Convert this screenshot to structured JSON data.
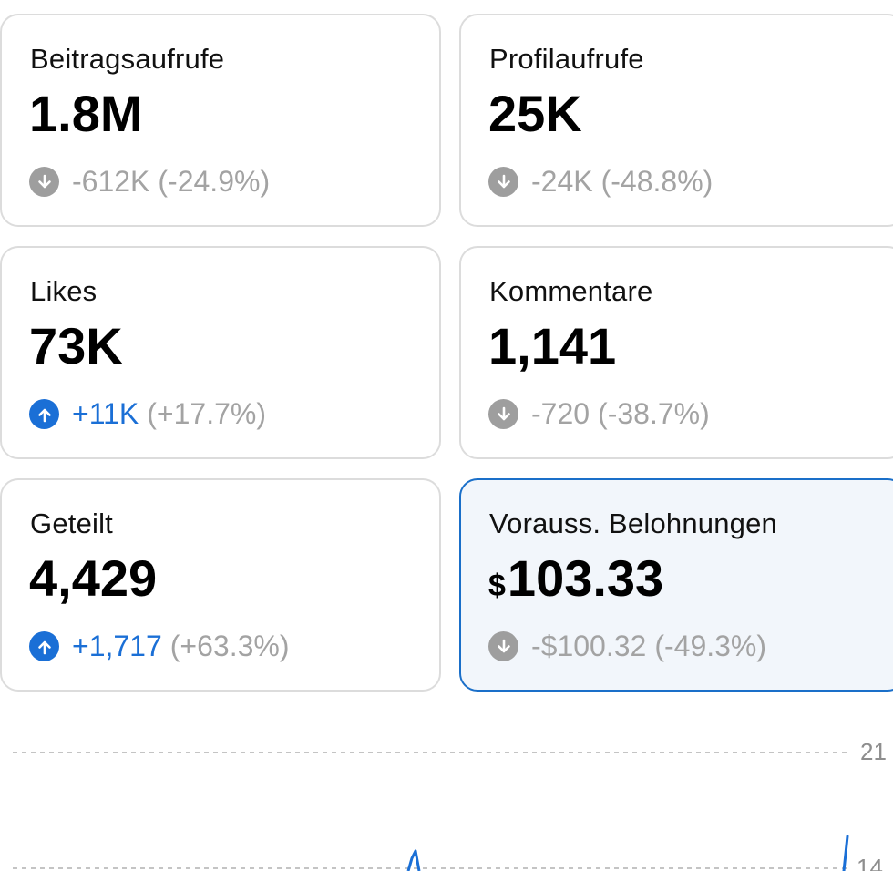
{
  "metrics": [
    {
      "label": "Beitragsaufrufe",
      "value": "1.8M",
      "currency": "",
      "delta": "-612K",
      "pct": "(-24.9%)",
      "direction": "down",
      "direction_icon": "arrow-down-icon"
    },
    {
      "label": "Profilaufrufe",
      "value": "25K",
      "currency": "",
      "delta": "-24K",
      "pct": "(-48.8%)",
      "direction": "down",
      "direction_icon": "arrow-down-icon"
    },
    {
      "label": "Likes",
      "value": "73K",
      "currency": "",
      "delta": "+11K",
      "pct": "(+17.7%)",
      "direction": "up",
      "direction_icon": "arrow-up-icon"
    },
    {
      "label": "Kommentare",
      "value": "1,141",
      "currency": "",
      "delta": "-720",
      "pct": "(-38.7%)",
      "direction": "down",
      "direction_icon": "arrow-down-icon"
    },
    {
      "label": "Geteilt",
      "value": "4,429",
      "currency": "",
      "delta": "+1,717",
      "pct": "(+63.3%)",
      "direction": "up",
      "direction_icon": "arrow-up-icon"
    },
    {
      "label": "Vorauss. Belohnungen",
      "value": "103.33",
      "currency": "$",
      "delta": "-$100.32",
      "pct": "(-49.3%)",
      "direction": "down",
      "direction_icon": "arrow-down-icon",
      "selected": true
    }
  ],
  "colors": {
    "accent": "#1a6fd6",
    "neutral_change": "#a3a3a3",
    "selected_border": "#1a6fc9",
    "selected_background": "#f2f6fb"
  },
  "chart": {
    "gridlines": [
      {
        "value": 21,
        "label": "21"
      },
      {
        "value": 14,
        "label": "14"
      }
    ],
    "line_color": "#1a6fd6"
  }
}
